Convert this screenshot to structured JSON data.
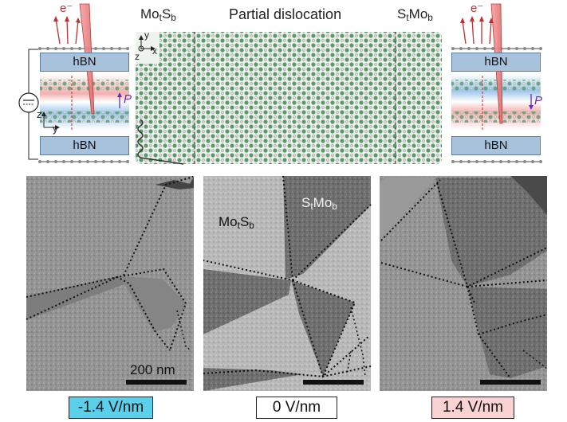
{
  "top": {
    "left_label": {
      "main": "Mo",
      "sub1": "t",
      "mid": "S",
      "sub2": "b"
    },
    "center_label": "Partial dislocation",
    "right_label": {
      "main": "S",
      "sub1": "t",
      "mid": "Mo",
      "sub2": "b"
    },
    "electron_left": "e⁻",
    "electron_right": "e⁻",
    "hbn_top_left": "hBN",
    "hbn_bottom_left": "hBN",
    "hbn_top_right": "hBN",
    "hbn_bottom_right": "hBN",
    "pol_left": "P",
    "pol_right": "P",
    "axes_left": {
      "z": "z",
      "y": "y"
    },
    "axes_center": {
      "y": "y",
      "x": "x",
      "z": "z"
    }
  },
  "panels": [
    {
      "field": "-1.4 V/nm",
      "field_color": "#5bd0ea",
      "scale_label": "200 nm"
    },
    {
      "field": "0 V/nm",
      "field_color": "#ffffff",
      "domain_a": {
        "main": "Mo",
        "sub1": "t",
        "mid": "S",
        "sub2": "b"
      },
      "domain_b": {
        "main": "S",
        "sub1": "t",
        "mid": "Mo",
        "sub2": "b"
      }
    },
    {
      "field": "1.4 V/nm",
      "field_color": "#f9d2d2"
    }
  ]
}
